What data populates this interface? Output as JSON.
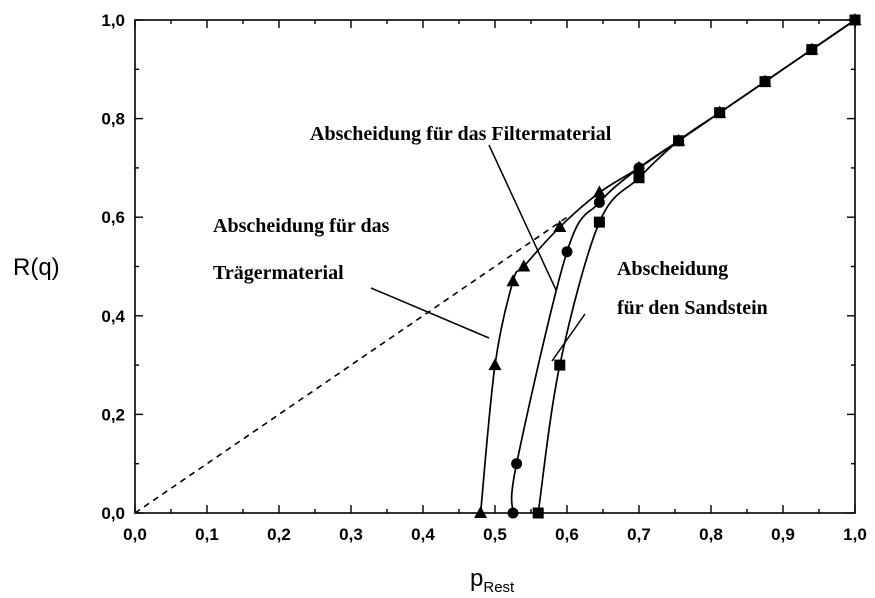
{
  "chart_data": {
    "type": "line",
    "xlabel": "p",
    "xlabel_sub": "Rest",
    "ylabel": "R(q)",
    "xlim": [
      0.0,
      1.0
    ],
    "ylim": [
      0.0,
      1.0
    ],
    "xticks": [
      "0,0",
      "0,1",
      "0,2",
      "0,3",
      "0,4",
      "0,5",
      "0,6",
      "0,7",
      "0,8",
      "0,9",
      "1,0"
    ],
    "yticks": [
      "0,0",
      "0,2",
      "0,4",
      "0,6",
      "0,8",
      "1,0"
    ],
    "grid": false,
    "reference_line": {
      "style": "dashed",
      "x": [
        0.0,
        0.6
      ],
      "y": [
        0.0,
        0.6
      ]
    },
    "series": [
      {
        "marker": "triangle",
        "points": [
          [
            0.48,
            0.0
          ],
          [
            0.5,
            0.3
          ],
          [
            0.525,
            0.47
          ],
          [
            0.54,
            0.5
          ],
          [
            0.59,
            0.58
          ],
          [
            0.645,
            0.65
          ],
          [
            0.7,
            0.7
          ],
          [
            0.755,
            0.755
          ],
          [
            0.812,
            0.812
          ],
          [
            0.875,
            0.875
          ],
          [
            0.94,
            0.94
          ],
          [
            1.0,
            1.0
          ]
        ]
      },
      {
        "marker": "circle",
        "points": [
          [
            0.525,
            0.0
          ],
          [
            0.53,
            0.1
          ],
          [
            0.6,
            0.53
          ],
          [
            0.645,
            0.63
          ],
          [
            0.7,
            0.7
          ],
          [
            0.755,
            0.755
          ],
          [
            0.812,
            0.812
          ],
          [
            0.875,
            0.875
          ],
          [
            0.94,
            0.94
          ],
          [
            1.0,
            1.0
          ]
        ]
      },
      {
        "marker": "square",
        "points": [
          [
            0.56,
            0.0
          ],
          [
            0.59,
            0.3
          ],
          [
            0.645,
            0.59
          ],
          [
            0.7,
            0.68
          ],
          [
            0.755,
            0.755
          ],
          [
            0.812,
            0.812
          ],
          [
            0.875,
            0.875
          ],
          [
            0.94,
            0.94
          ],
          [
            1.0,
            1.0
          ]
        ]
      }
    ],
    "annotations": [
      {
        "id": "traeger",
        "lines": [
          "Abscheidung für das",
          "Trägermaterial"
        ]
      },
      {
        "id": "filter",
        "lines": [
          "Abscheidung für das Filtermaterial"
        ]
      },
      {
        "id": "sandstein",
        "lines": [
          "Abscheidung",
          "für den Sandstein"
        ]
      }
    ]
  }
}
